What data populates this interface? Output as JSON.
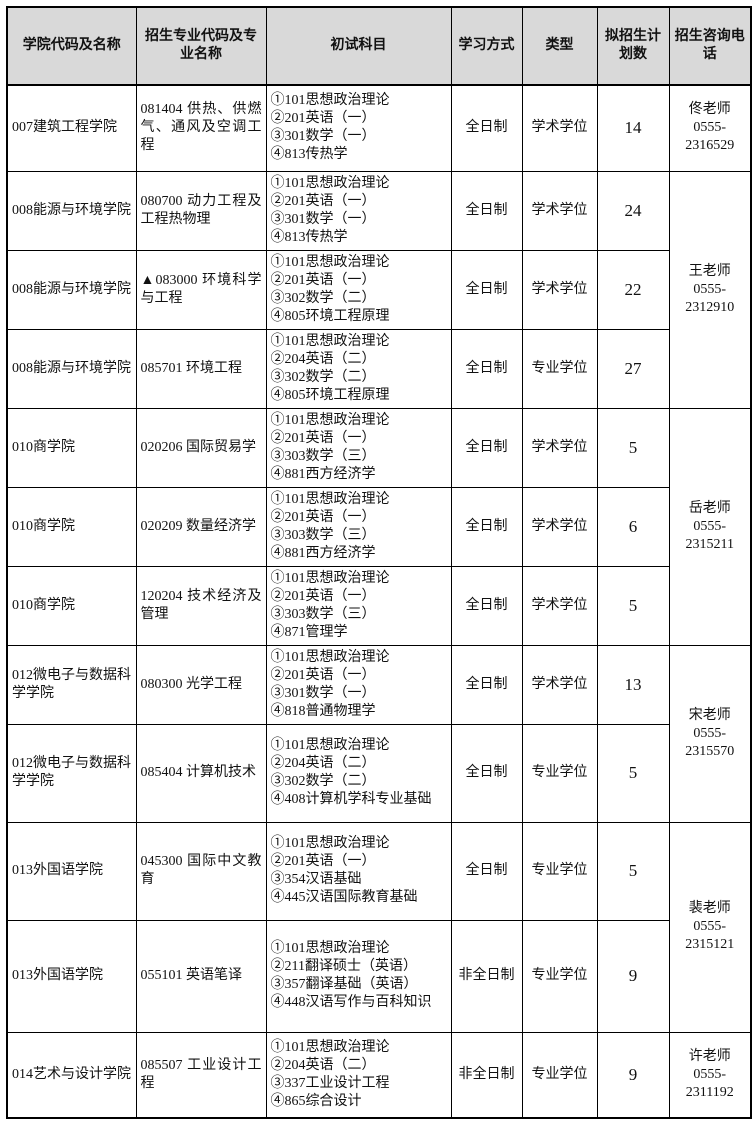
{
  "table": {
    "headers": [
      "学院代码及名称",
      "招生专业代码及专业名称",
      "初试科目",
      "学习方式",
      "类型",
      "拟招生计划数",
      "招生咨询电话"
    ],
    "rows": [
      {
        "college": "007建筑工程学院",
        "major": "081404 供热、供燃气、通风及空调工程",
        "subjects": [
          "①101思想政治理论",
          "②201英语（一）",
          "③301数学（一）",
          "④813传热学"
        ],
        "mode": "全日制",
        "type": "学术学位",
        "quota": "14",
        "contact": {
          "name": "佟老师",
          "phone": "0555-2316529",
          "rowspan": 1
        },
        "size": "first"
      },
      {
        "college": "008能源与环境学院",
        "major": "080700 动力工程及工程热物理",
        "subjects": [
          "①101思想政治理论",
          "②201英语（一）",
          "③301数学（一）",
          "④813传热学"
        ],
        "mode": "全日制",
        "type": "学术学位",
        "quota": "24",
        "contact": {
          "name": "王老师",
          "phone": "0555-2312910",
          "rowspan": 3
        },
        "size": ""
      },
      {
        "college": "008能源与环境学院",
        "major": "▲083000 环境科学与工程",
        "subjects": [
          "①101思想政治理论",
          "②201英语（一）",
          "③302数学（二）",
          "④805环境工程原理"
        ],
        "mode": "全日制",
        "type": "学术学位",
        "quota": "22",
        "contact": null,
        "size": ""
      },
      {
        "college": "008能源与环境学院",
        "major": "085701 环境工程",
        "subjects": [
          "①101思想政治理论",
          "②204英语（二）",
          "③302数学（二）",
          "④805环境工程原理"
        ],
        "mode": "全日制",
        "type": "专业学位",
        "quota": "27",
        "contact": null,
        "size": ""
      },
      {
        "college": "010商学院",
        "major": "020206 国际贸易学",
        "subjects": [
          "①101思想政治理论",
          "②201英语（一）",
          "③303数学（三）",
          "④881西方经济学"
        ],
        "mode": "全日制",
        "type": "学术学位",
        "quota": "5",
        "contact": {
          "name": "岳老师",
          "phone": "0555-2315211",
          "rowspan": 3
        },
        "size": ""
      },
      {
        "college": "010商学院",
        "major": "020209 数量经济学",
        "subjects": [
          "①101思想政治理论",
          "②201英语（一）",
          "③303数学（三）",
          "④881西方经济学"
        ],
        "mode": "全日制",
        "type": "学术学位",
        "quota": "6",
        "contact": null,
        "size": ""
      },
      {
        "college": "010商学院",
        "major": "120204 技术经济及管理",
        "subjects": [
          "①101思想政治理论",
          "②201英语（一）",
          "③303数学（三）",
          "④871管理学"
        ],
        "mode": "全日制",
        "type": "学术学位",
        "quota": "5",
        "contact": null,
        "size": ""
      },
      {
        "college": "012微电子与数据科学学院",
        "major": "080300 光学工程",
        "subjects": [
          "①101思想政治理论",
          "②201英语（一）",
          "③301数学（一）",
          "④818普通物理学"
        ],
        "mode": "全日制",
        "type": "学术学位",
        "quota": "13",
        "contact": {
          "name": "宋老师",
          "phone": "0555-2315570",
          "rowspan": 2
        },
        "size": ""
      },
      {
        "college": "012微电子与数据科学学院",
        "major": "085404 计算机技术",
        "subjects": [
          "①101思想政治理论",
          "②204英语（二）",
          "③302数学（二）",
          "④408计算机学科专业基础"
        ],
        "mode": "全日制",
        "type": "专业学位",
        "quota": "5",
        "contact": null,
        "size": "tall"
      },
      {
        "college": "013外国语学院",
        "major": "045300 国际中文教育",
        "subjects": [
          "①101思想政治理论",
          "②201英语（一）",
          "③354汉语基础",
          "④445汉语国际教育基础"
        ],
        "mode": "全日制",
        "type": "专业学位",
        "quota": "5",
        "contact": {
          "name": "裴老师",
          "phone": "0555-2315121",
          "rowspan": 2
        },
        "size": "tall"
      },
      {
        "college": "013外国语学院",
        "major": "055101 英语笔译",
        "subjects": [
          "①101思想政治理论",
          "②211翻译硕士（英语）",
          "③357翻译基础（英语）",
          "④448汉语写作与百科知识"
        ],
        "mode": "非全日制",
        "type": "专业学位",
        "quota": "9",
        "contact": null,
        "size": "taller"
      },
      {
        "college": "014艺术与设计学院",
        "major": "085507 工业设计工程",
        "subjects": [
          "①101思想政治理论",
          "②204英语（二）",
          "③337工业设计工程",
          "④865综合设计"
        ],
        "mode": "非全日制",
        "type": "专业学位",
        "quota": "9",
        "contact": {
          "name": "许老师",
          "phone": "0555-2311192",
          "rowspan": 1
        },
        "size": "first"
      }
    ]
  }
}
